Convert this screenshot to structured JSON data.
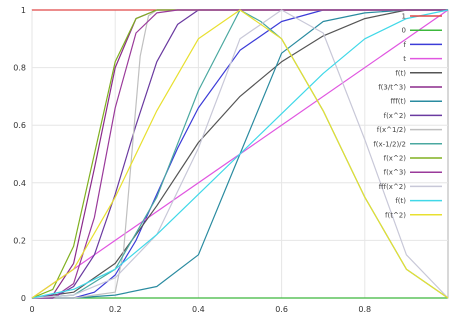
{
  "chart_data": {
    "type": "line",
    "title": "",
    "xlabel": "",
    "ylabel": "",
    "xlim": [
      0,
      1
    ],
    "ylim": [
      0,
      1
    ],
    "grid": true,
    "legend_position": "top-right",
    "x_ticks": [
      "0",
      "0.2",
      "0.4",
      "0.6",
      "0.8"
    ],
    "y_ticks": [
      "0",
      "0.2",
      "0.4",
      "0.6",
      "0.8",
      "1"
    ],
    "legend": [
      "1",
      "0",
      "f",
      "t",
      "f(t)",
      "f(3/t^3)",
      "fff(t)",
      "f(x^2)",
      "f(x^1/2)",
      "f(x-1/2)/2",
      "f(x^2)",
      "f(x^3)",
      "fff(x^2)",
      "f(t)",
      "f(t^2)"
    ],
    "series": [
      {
        "color": "#e04848",
        "x": [
          0,
          1
        ],
        "y": [
          1,
          1
        ]
      },
      {
        "color": "#3cb83c",
        "x": [
          0,
          1
        ],
        "y": [
          0,
          0
        ]
      },
      {
        "color": "#3c3cd8",
        "x": [
          0,
          0.1,
          0.15,
          0.2,
          0.25,
          0.3,
          0.35,
          0.4,
          0.5,
          0.6,
          0.7,
          0.8,
          0.9,
          1.0
        ],
        "y": [
          0,
          0,
          0.02,
          0.08,
          0.2,
          0.36,
          0.52,
          0.66,
          0.86,
          0.96,
          1,
          1,
          1,
          1
        ]
      },
      {
        "color": "#e056e0",
        "x": [
          0,
          1
        ],
        "y": [
          0,
          1
        ]
      },
      {
        "color": "#555555",
        "x": [
          0,
          0.1,
          0.2,
          0.3,
          0.4,
          0.5,
          0.6,
          0.7,
          0.8,
          0.9,
          1.0
        ],
        "y": [
          0,
          0.02,
          0.12,
          0.32,
          0.54,
          0.7,
          0.82,
          0.91,
          0.97,
          1,
          1
        ]
      },
      {
        "color": "#8b2a8b",
        "x": [
          0,
          0.05,
          0.1,
          0.15,
          0.2,
          0.25,
          0.3,
          1.0
        ],
        "y": [
          0,
          0.01,
          0.12,
          0.45,
          0.8,
          0.97,
          1,
          1
        ]
      },
      {
        "color": "#2a8ba0",
        "x": [
          0,
          0.1,
          0.2,
          0.3,
          0.4,
          0.5,
          0.6,
          0.7,
          0.8,
          0.9,
          1.0
        ],
        "y": [
          0,
          0,
          0.01,
          0.04,
          0.15,
          0.5,
          0.85,
          0.96,
          0.99,
          1,
          1
        ]
      },
      {
        "color": "#6a3aa0",
        "x": [
          0,
          0.05,
          0.1,
          0.15,
          0.2,
          0.25,
          0.3,
          0.35,
          0.4,
          1.0
        ],
        "y": [
          0,
          0,
          0.04,
          0.15,
          0.36,
          0.6,
          0.82,
          0.95,
          1,
          1
        ]
      },
      {
        "color": "#c0c0c0",
        "x": [
          0,
          0.1,
          0.2,
          0.22,
          0.24,
          0.26,
          0.28,
          0.3,
          1.0
        ],
        "y": [
          0,
          0,
          0.02,
          0.16,
          0.5,
          0.84,
          0.98,
          1,
          1
        ]
      },
      {
        "color": "#4aa8a0",
        "x": [
          0,
          0.1,
          0.2,
          0.3,
          0.4,
          0.5,
          0.55,
          0.6,
          0.7,
          0.8,
          0.9,
          1.0
        ],
        "y": [
          0,
          0.01,
          0.1,
          0.35,
          0.72,
          1,
          0.96,
          0.9,
          0.65,
          0.35,
          0.1,
          0
        ]
      },
      {
        "color": "#80b020",
        "x": [
          0,
          0.05,
          0.1,
          0.15,
          0.2,
          0.25,
          0.3,
          1.0
        ],
        "y": [
          0,
          0.03,
          0.18,
          0.5,
          0.82,
          0.97,
          1,
          1
        ]
      },
      {
        "color": "#9a3a9a",
        "x": [
          0,
          0.05,
          0.1,
          0.15,
          0.2,
          0.25,
          0.3,
          0.35,
          1.0
        ],
        "y": [
          0,
          0,
          0.05,
          0.28,
          0.66,
          0.92,
          0.99,
          1,
          1
        ]
      },
      {
        "color": "#c8c8d8",
        "x": [
          0,
          0.1,
          0.2,
          0.3,
          0.4,
          0.5,
          0.6,
          0.7,
          0.8,
          0.9,
          1.0
        ],
        "y": [
          0,
          0.01,
          0.07,
          0.22,
          0.52,
          0.9,
          1,
          0.92,
          0.55,
          0.15,
          0
        ]
      },
      {
        "color": "#40d8e8",
        "x": [
          0,
          0.1,
          0.2,
          0.3,
          0.4,
          0.5,
          0.6,
          0.7,
          0.8,
          0.9,
          1.0
        ],
        "y": [
          0,
          0.03,
          0.1,
          0.22,
          0.36,
          0.5,
          0.64,
          0.78,
          0.9,
          0.97,
          1
        ]
      },
      {
        "color": "#e8e030",
        "x": [
          0,
          0.1,
          0.2,
          0.3,
          0.4,
          0.5,
          0.6,
          0.7,
          0.8,
          0.9,
          1.0
        ],
        "y": [
          0,
          0.1,
          0.35,
          0.65,
          0.9,
          1,
          0.9,
          0.65,
          0.35,
          0.1,
          0
        ]
      }
    ]
  }
}
